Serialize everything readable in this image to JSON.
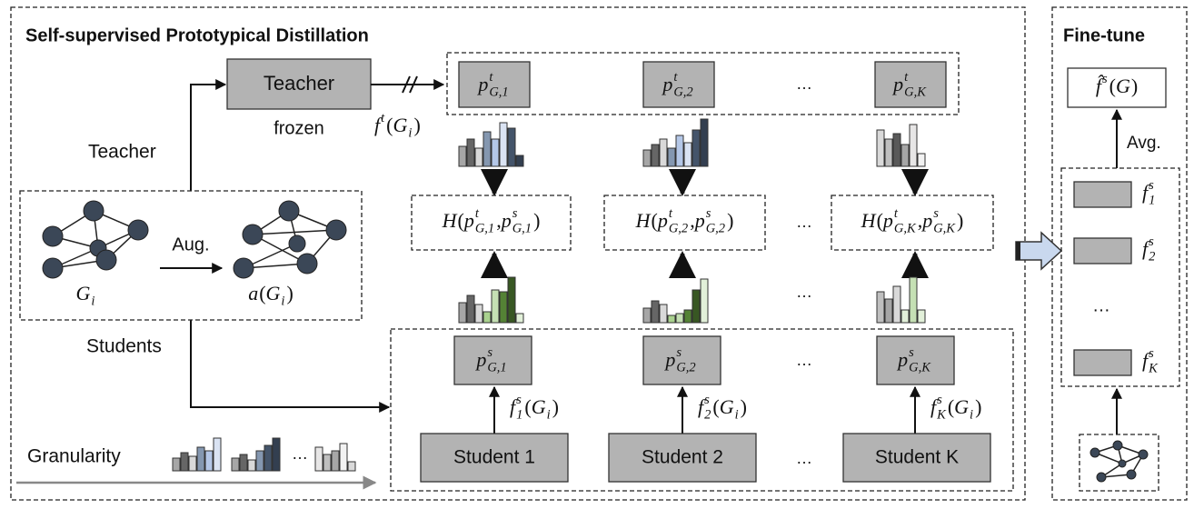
{
  "title": "Self-supervised Prototypical Distillation",
  "teacher": {
    "box": "Teacher",
    "note": "frozen",
    "branch_label": "Teacher",
    "output": [
      {
        "base": "f",
        "sup": "t"
      },
      "(",
      {
        "base": "G",
        "sub": "i"
      },
      ")"
    ]
  },
  "graph": {
    "aug": "Aug.",
    "original": [
      {
        "base": "G",
        "sub": "i"
      }
    ],
    "augmented": [
      {
        "base": "a"
      },
      "(",
      {
        "base": "G",
        "sub": "i"
      },
      ")"
    ]
  },
  "students_label": "Students",
  "ellipsis": "…",
  "teacher_prototypes": [
    [
      {
        "base": "p",
        "sup": "t",
        "sub": "G,1"
      }
    ],
    [
      {
        "base": "p",
        "sup": "t",
        "sub": "G,2"
      }
    ],
    [
      {
        "base": "p",
        "sup": "t",
        "sub": "G,K"
      }
    ]
  ],
  "entropy": [
    [
      {
        "base": "H"
      },
      "(",
      {
        "base": "p",
        "sup": "t",
        "sub": "G,1"
      },
      ", ",
      {
        "base": "p",
        "sup": "s",
        "sub": "G,1"
      },
      ")"
    ],
    [
      {
        "base": "H"
      },
      "(",
      {
        "base": "p",
        "sup": "t",
        "sub": "G,2"
      },
      ", ",
      {
        "base": "p",
        "sup": "s",
        "sub": "G,2"
      },
      ")"
    ],
    [
      {
        "base": "H"
      },
      "(",
      {
        "base": "p",
        "sup": "t",
        "sub": "G,K"
      },
      ", ",
      {
        "base": "p",
        "sup": "s",
        "sub": "G,K"
      },
      ")"
    ]
  ],
  "student_prototypes": [
    [
      {
        "base": "p",
        "sup": "s",
        "sub": "G,1"
      }
    ],
    [
      {
        "base": "p",
        "sup": "s",
        "sub": "G,2"
      }
    ],
    [
      {
        "base": "p",
        "sup": "s",
        "sub": "G,K"
      }
    ]
  ],
  "student_outputs": [
    [
      {
        "base": "f",
        "sup": "s",
        "sub": "1"
      },
      "(",
      {
        "base": "G",
        "sub": "i"
      },
      ")"
    ],
    [
      {
        "base": "f",
        "sup": "s",
        "sub": "2"
      },
      "(",
      {
        "base": "G",
        "sub": "i"
      },
      ")"
    ],
    [
      {
        "base": "f",
        "sup": "s",
        "sub": "K"
      },
      "(",
      {
        "base": "G",
        "sub": "i"
      },
      ")"
    ]
  ],
  "students": [
    "Student 1",
    "Student 2",
    "Student K"
  ],
  "granularity": "Granularity",
  "finetune": {
    "title": "Fine-tune",
    "output": [
      {
        "base": "f̂",
        "sup": "s"
      },
      "(",
      {
        "base": "G"
      },
      ")"
    ],
    "avg": "Avg.",
    "features": [
      [
        {
          "base": "f",
          "sup": "s",
          "sub": "1"
        }
      ],
      [
        {
          "base": "f",
          "sup": "s",
          "sub": "2"
        }
      ],
      [
        {
          "base": "f",
          "sup": "s",
          "sub": "K"
        }
      ]
    ]
  }
}
